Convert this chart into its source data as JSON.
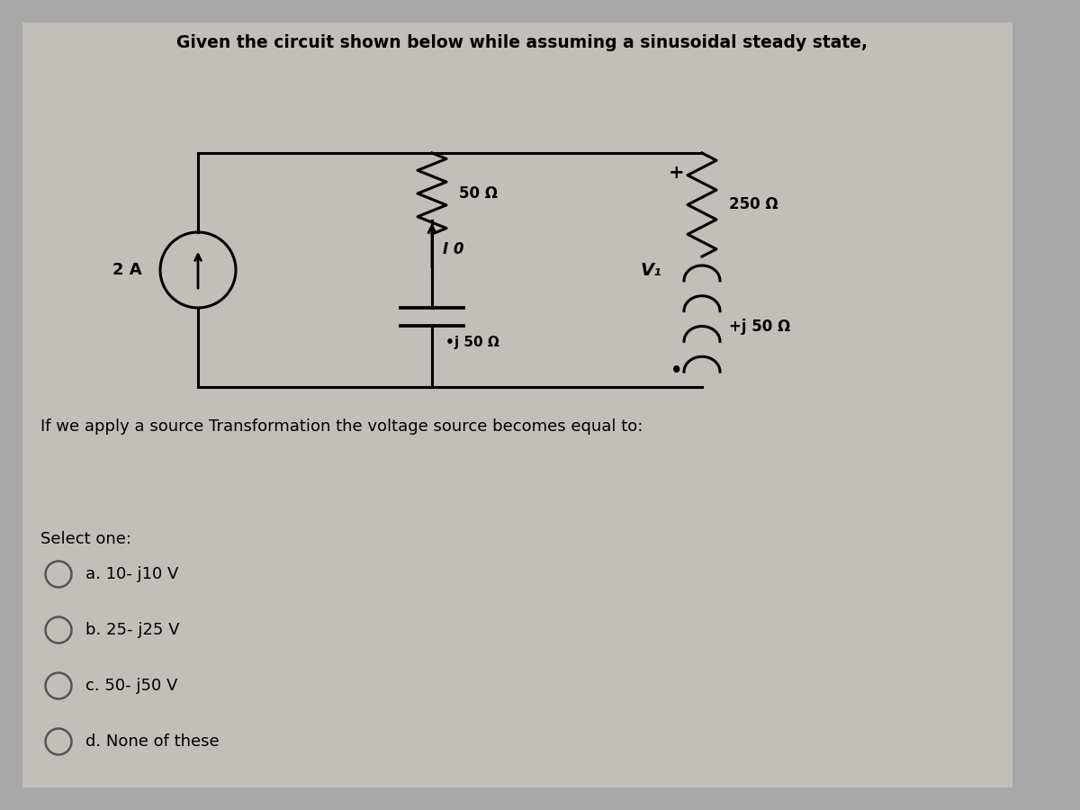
{
  "title": "Given the circuit shown below while assuming a sinusoidal steady state,",
  "subtitle": "If we apply a source Transformation the voltage source becomes equal to:",
  "select_one": "Select one:",
  "options": [
    "a. 10- j10 V",
    "b. 25- j25 V",
    "c. 50- j50 V",
    "d. None of these"
  ],
  "bg_color": "#a8a8a8",
  "panel_color": "#b8b8b8",
  "text_color": "#000000",
  "resistor_50": "50 Ω",
  "resistor_250": "250 Ω",
  "current_source": "2 A",
  "voltage_source_label": "I 0",
  "cap_label": "•j 50 Ω",
  "inductor_label": "+j 50 Ω",
  "v1_label": "V₁",
  "plus_label": "+",
  "minus_label": "•"
}
